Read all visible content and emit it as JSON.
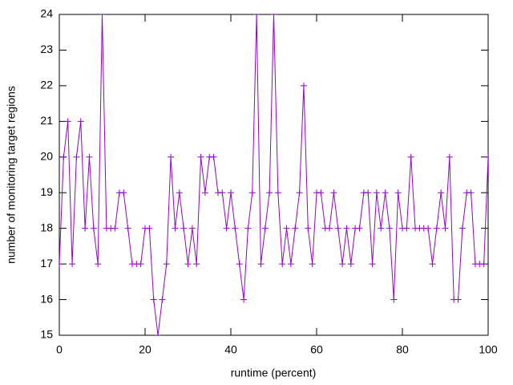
{
  "chart_data": {
    "type": "line",
    "xlabel": "runtime (percent)",
    "ylabel": "number of monitoring target regions",
    "x": [
      0,
      1,
      2,
      3,
      4,
      5,
      6,
      7,
      8,
      9,
      10,
      11,
      12,
      13,
      14,
      15,
      16,
      17,
      18,
      19,
      20,
      21,
      22,
      23,
      24,
      25,
      26,
      27,
      28,
      29,
      30,
      31,
      32,
      33,
      34,
      35,
      36,
      37,
      38,
      39,
      40,
      41,
      42,
      43,
      44,
      45,
      46,
      47,
      48,
      49,
      50,
      51,
      52,
      53,
      54,
      55,
      56,
      57,
      58,
      59,
      60,
      61,
      62,
      63,
      64,
      65,
      66,
      67,
      68,
      69,
      70,
      71,
      72,
      73,
      74,
      75,
      76,
      77,
      78,
      79,
      80,
      81,
      82,
      83,
      84,
      85,
      86,
      87,
      88,
      89,
      90,
      91,
      92,
      93,
      94,
      95,
      96,
      97,
      98,
      99,
      100
    ],
    "series": [
      {
        "color": "#9400d3",
        "values": [
          17,
          20,
          21,
          17,
          20,
          21,
          18,
          20,
          18,
          17,
          24,
          18,
          18,
          18,
          19,
          19,
          18,
          17,
          17,
          17,
          18,
          18,
          16,
          15,
          16,
          17,
          20,
          18,
          19,
          18,
          17,
          18,
          17,
          20,
          19,
          20,
          20,
          19,
          19,
          18,
          19,
          18,
          17,
          16,
          18,
          19,
          24,
          17,
          18,
          19,
          24,
          19,
          17,
          18,
          17,
          18,
          19,
          22,
          18,
          17,
          19,
          19,
          18,
          18,
          19,
          18,
          17,
          18,
          17,
          18,
          18,
          19,
          19,
          17,
          19,
          18,
          19,
          18,
          16,
          19,
          18,
          18,
          20,
          18,
          18,
          18,
          18,
          17,
          18,
          19,
          18,
          20,
          16,
          16,
          18,
          19,
          19,
          17,
          17,
          17,
          20
        ]
      }
    ],
    "xlim": [
      0,
      100
    ],
    "xticks": [
      0,
      20,
      40,
      60,
      80,
      100
    ],
    "ylim": [
      15,
      24
    ],
    "yticks": [
      15,
      16,
      17,
      18,
      19,
      20,
      21,
      22,
      23,
      24
    ],
    "grid": false
  }
}
